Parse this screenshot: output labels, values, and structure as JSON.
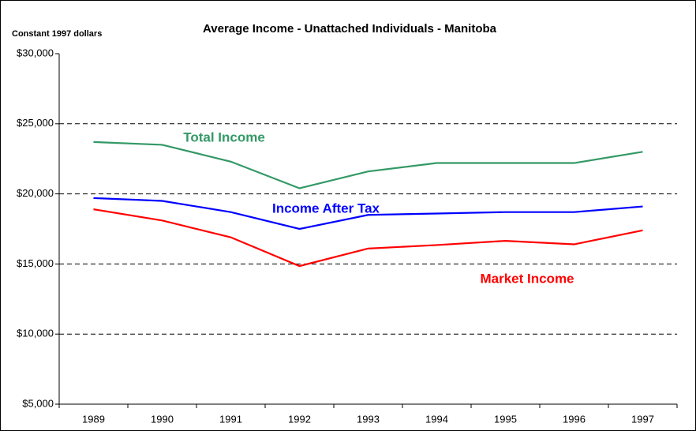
{
  "chart_data": {
    "type": "line",
    "title": "Average Income - Unattached Individuals - Manitoba",
    "y_label": "Constant 1997 dollars",
    "categories": [
      "1989",
      "1990",
      "1991",
      "1992",
      "1993",
      "1994",
      "1995",
      "1996",
      "1997"
    ],
    "series": [
      {
        "name": "Total Income",
        "color": "#339966",
        "values": [
          23700,
          23500,
          22300,
          20400,
          21600,
          22200,
          22200,
          22200,
          23000
        ]
      },
      {
        "name": "Income After Tax",
        "color": "#0000ff",
        "values": [
          19700,
          19500,
          18700,
          17500,
          18500,
          18600,
          18700,
          18700,
          19100
        ]
      },
      {
        "name": "Market Income",
        "color": "#ff0000",
        "values": [
          18900,
          18100,
          16900,
          14850,
          16100,
          16350,
          16650,
          16400,
          17400
        ]
      }
    ],
    "ylim": [
      5000,
      30000
    ],
    "yticks": [
      {
        "value": 5000,
        "label": "$5,000"
      },
      {
        "value": 10000,
        "label": "$10,000"
      },
      {
        "value": 15000,
        "label": "$15,000"
      },
      {
        "value": 20000,
        "label": "$20,000"
      },
      {
        "value": 25000,
        "label": "$25,000"
      },
      {
        "value": 30000,
        "label": "$30,000"
      }
    ],
    "grid": true
  }
}
